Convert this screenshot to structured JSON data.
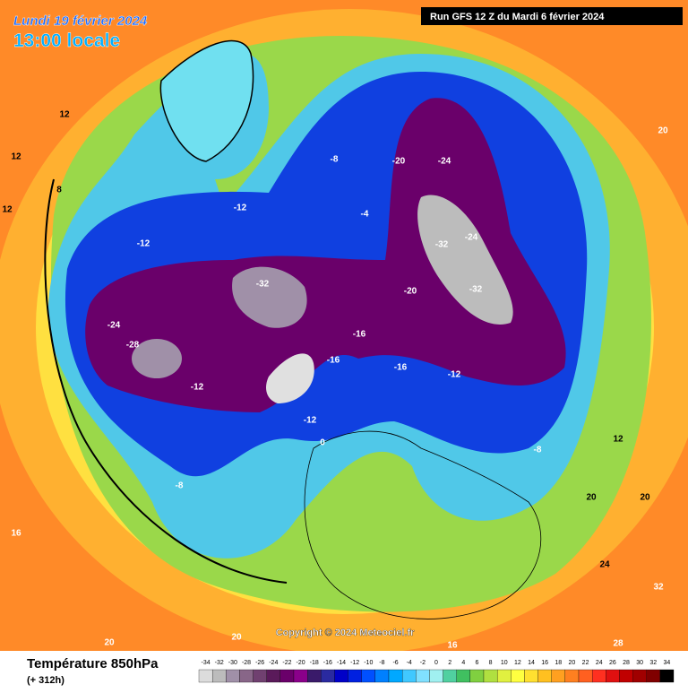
{
  "header": {
    "date": "Lundi 19 février 2024",
    "time": "13:00 locale",
    "run": "Run GFS 12 Z du Mardi 6 février 2024"
  },
  "copyright": "Copyright © 2024 Meteociel.fr",
  "legend": {
    "title": "Température 850hPa",
    "lead": "(+ 312h)",
    "ticks": [
      -34,
      -32,
      -30,
      -28,
      -26,
      -24,
      -22,
      -20,
      -18,
      -16,
      -14,
      -12,
      -10,
      -8,
      -6,
      -4,
      -2,
      0,
      2,
      4,
      6,
      8,
      10,
      12,
      14,
      16,
      18,
      20,
      22,
      24,
      26,
      28,
      30,
      32,
      34
    ],
    "colors": [
      "#dcdcdc",
      "#bcbcbc",
      "#a090a8",
      "#886688",
      "#704070",
      "#5a1a5a",
      "#6a006a",
      "#8a008a",
      "#3a1a6a",
      "#2a2aa0",
      "#0000c8",
      "#0020e0",
      "#0050ff",
      "#0080ff",
      "#00a8ff",
      "#40c8ff",
      "#80e0ff",
      "#a0f0f0",
      "#50d0a0",
      "#40c060",
      "#80d040",
      "#b0e040",
      "#e0f040",
      "#ffff40",
      "#ffe030",
      "#ffc020",
      "#ffa020",
      "#ff8020",
      "#ff6020",
      "#ff3020",
      "#e01010",
      "#c00000",
      "#a00000",
      "#800000",
      "#000000"
    ]
  },
  "contour_labels": [
    12,
    12,
    8,
    12,
    -12,
    -12,
    -8,
    -4,
    -20,
    -24,
    -24,
    -32,
    -32,
    -16,
    -12,
    -20,
    -16,
    -16,
    -32,
    -24,
    -28,
    -12,
    -12,
    0,
    -8,
    -8,
    12,
    20,
    24,
    28,
    20,
    20,
    16,
    20,
    20,
    16,
    32
  ]
}
